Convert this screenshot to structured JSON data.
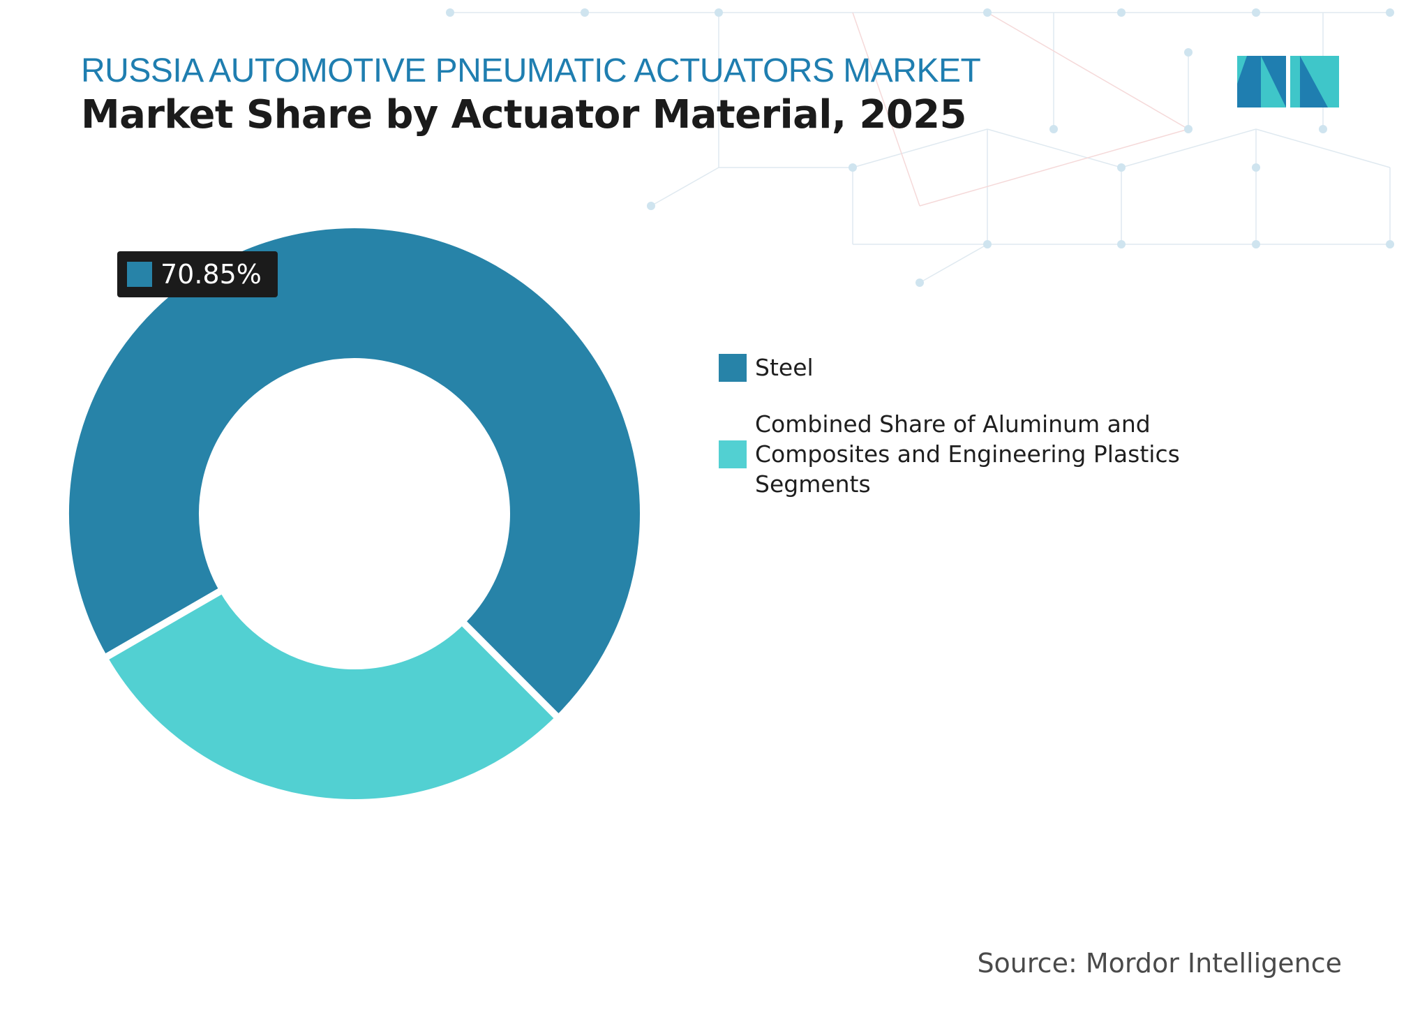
{
  "header": {
    "kicker": "RUSSIA AUTOMOTIVE PNEUMATIC ACTUATORS MARKET",
    "title": "Market Share by Actuator Material, 2025"
  },
  "footer": {
    "source": "Source: Mordor Intelligence"
  },
  "colors": {
    "steel": "#2783a8",
    "combined": "#52d0d2",
    "kicker": "#1f7eb0",
    "label_bg": "#1b1b1b",
    "logo_dark": "#1f7eb0",
    "logo_light": "#3fc6c9"
  },
  "chart_data": {
    "type": "pie",
    "style": "donut",
    "slices": [
      {
        "name": "Steel",
        "value": 70.85,
        "label": "70.85%",
        "color": "#2783a8"
      },
      {
        "name": "Combined Share of Aluminum and Composites and Engineering Plastics Segments",
        "value": 29.15,
        "color": "#52d0d2"
      }
    ],
    "legend": {
      "placement": "right",
      "entries": [
        "Steel",
        "Combined Share of Aluminum and Composites and Engineering Plastics Segments"
      ]
    }
  }
}
